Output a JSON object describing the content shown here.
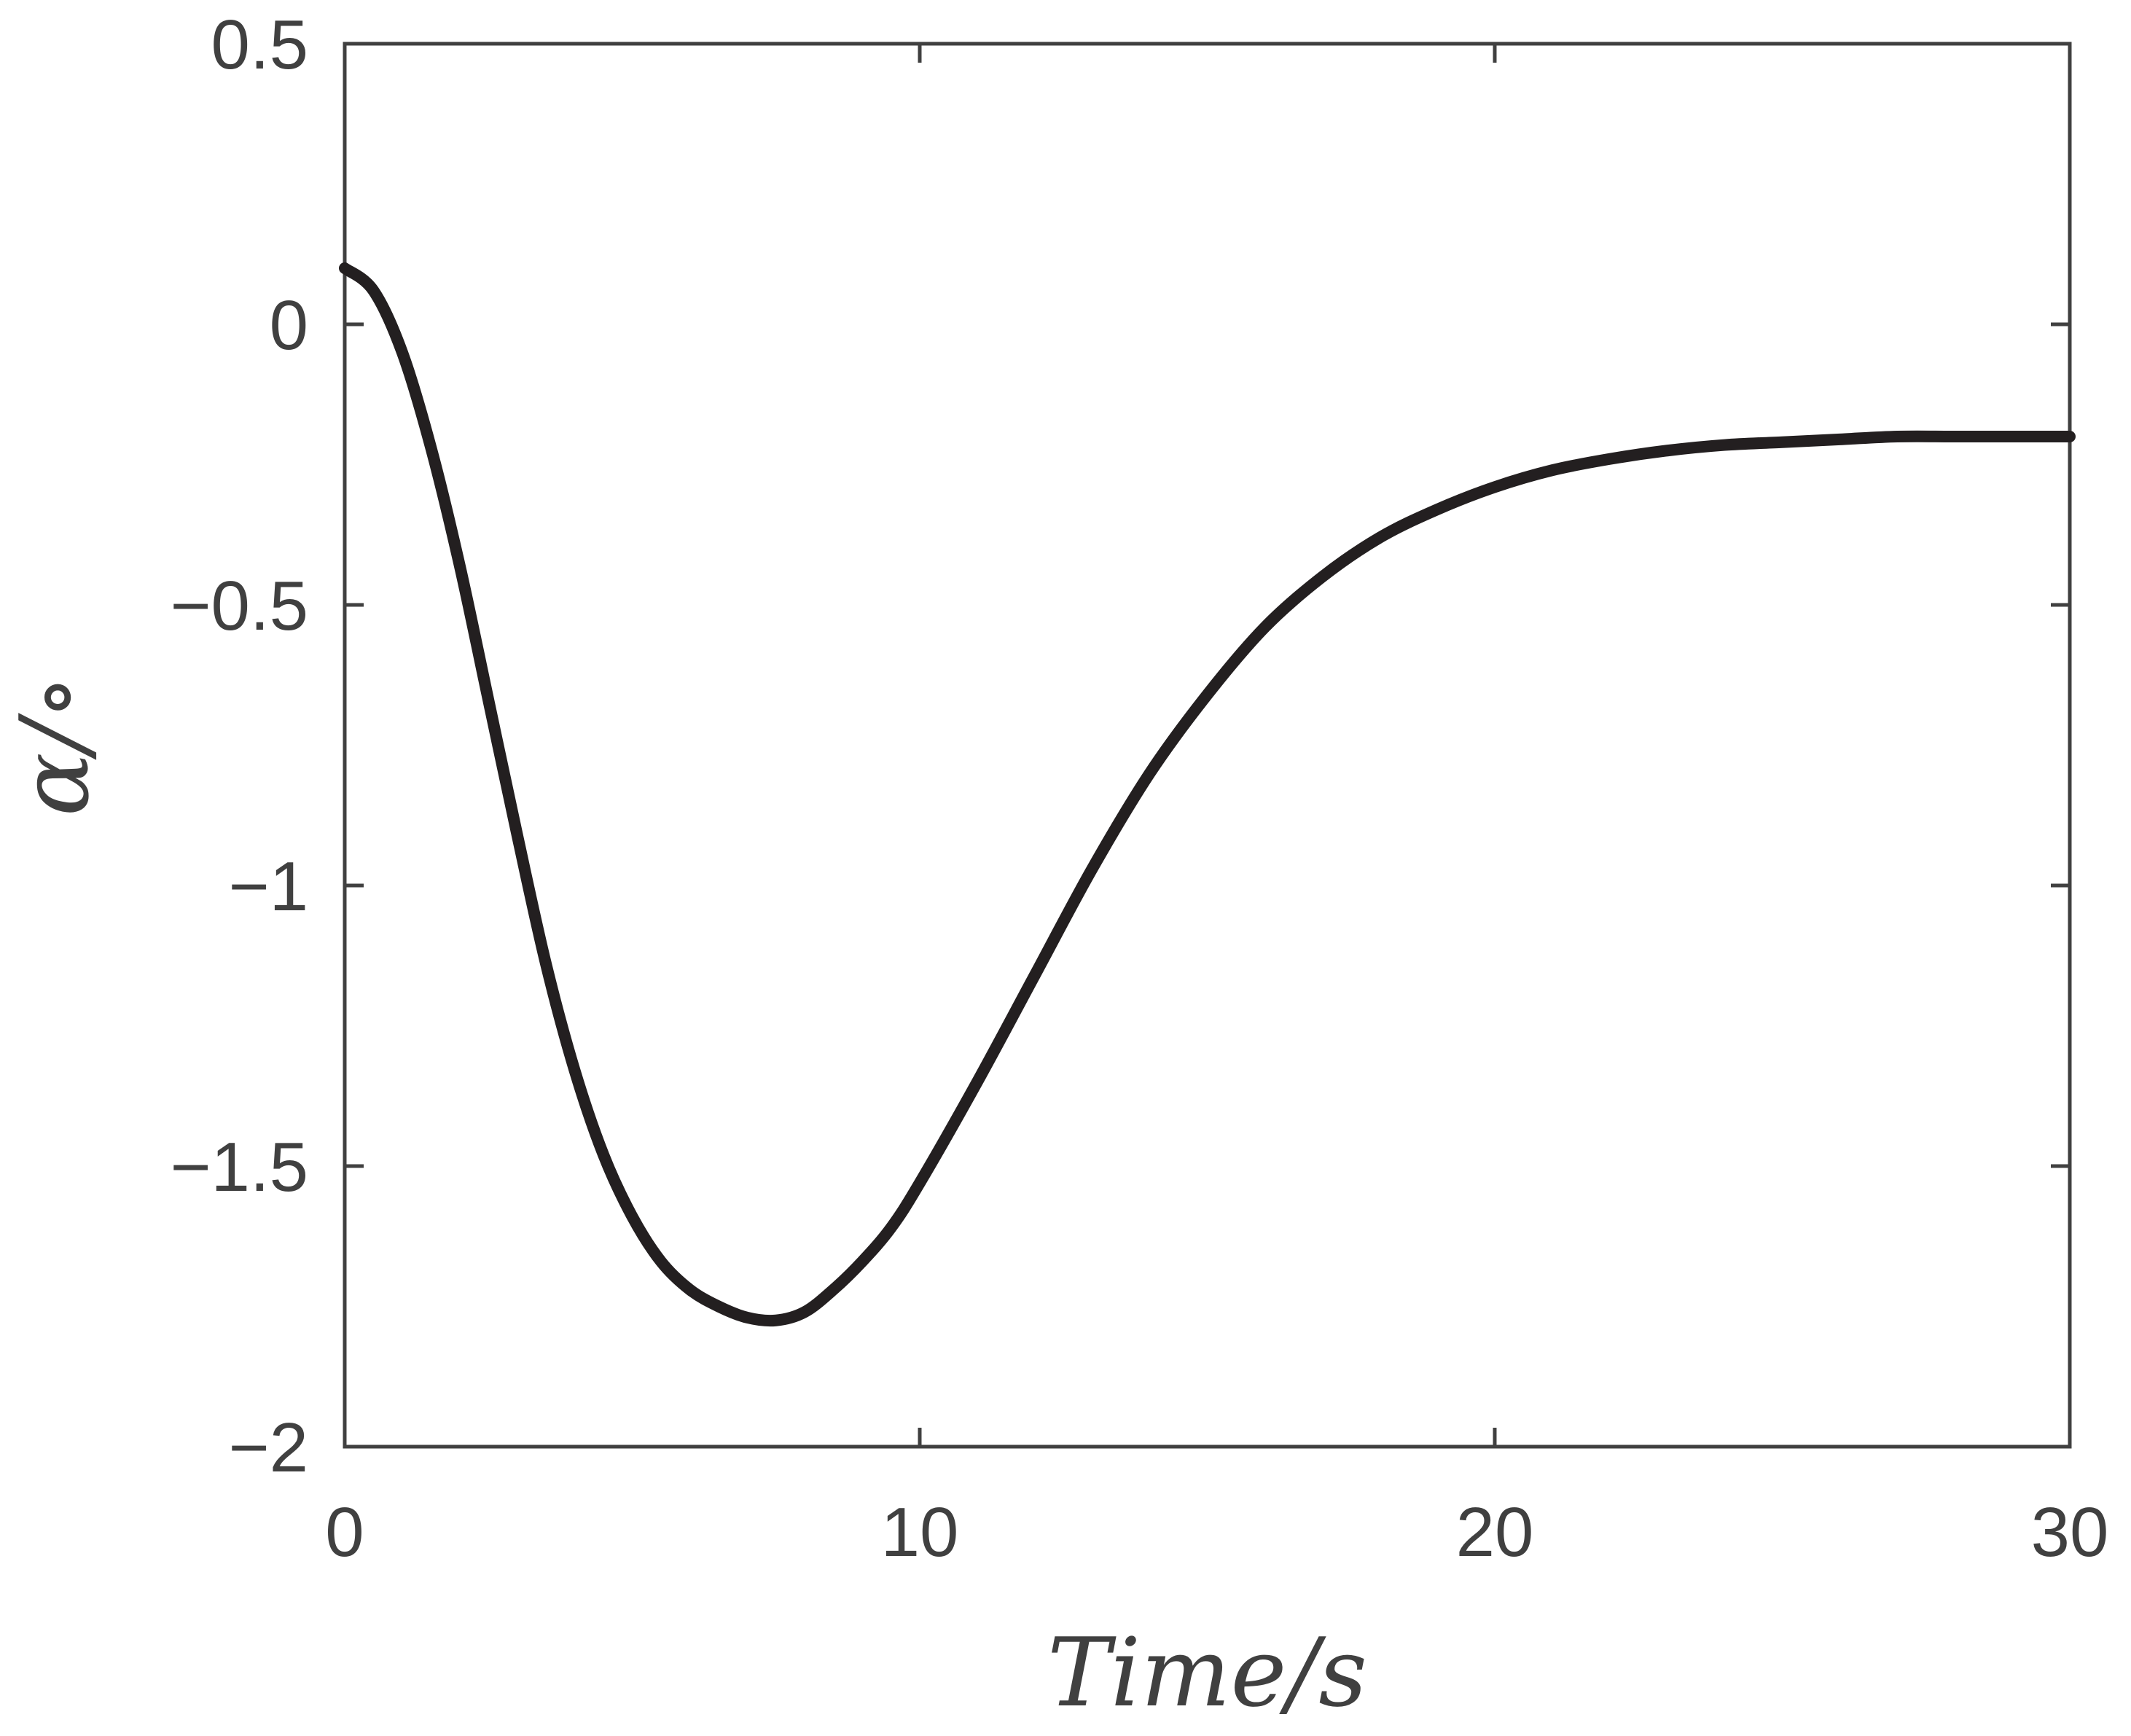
{
  "chart_data": {
    "type": "line",
    "title": "",
    "xlabel": "Time/s",
    "ylabel": "α/∘",
    "xlim": [
      0,
      30
    ],
    "ylim": [
      -2,
      0.5
    ],
    "xticks": [
      0,
      10,
      20,
      30
    ],
    "xtick_labels": [
      "0",
      "10",
      "20",
      "30"
    ],
    "yticks": [
      0.5,
      0,
      -0.5,
      -1,
      -1.5,
      -2
    ],
    "ytick_labels": [
      "0.5",
      "0",
      "−0.5",
      "−1",
      "−1.5",
      "−2"
    ],
    "grid": false,
    "legend": "none",
    "colors": {
      "line": "#231f20",
      "axes": "#404040"
    },
    "series": [
      {
        "x": [
          0,
          0.5,
          1,
          1.5,
          2,
          2.5,
          3,
          3.5,
          4,
          4.5,
          5,
          5.5,
          6,
          6.5,
          7,
          7.5,
          8,
          8.5,
          9,
          9.5,
          10,
          11,
          12,
          13,
          14,
          15,
          16,
          17,
          18,
          19,
          20,
          21,
          22,
          23,
          24,
          25,
          26,
          27,
          28,
          29,
          30
        ],
        "y": [
          0.1,
          0.06,
          -0.05,
          -0.22,
          -0.43,
          -0.67,
          -0.91,
          -1.14,
          -1.33,
          -1.48,
          -1.59,
          -1.67,
          -1.72,
          -1.75,
          -1.77,
          -1.775,
          -1.76,
          -1.72,
          -1.67,
          -1.61,
          -1.53,
          -1.35,
          -1.16,
          -0.97,
          -0.8,
          -0.66,
          -0.54,
          -0.45,
          -0.38,
          -0.33,
          -0.29,
          -0.26,
          -0.24,
          -0.225,
          -0.215,
          -0.21,
          -0.205,
          -0.2,
          -0.2,
          -0.2,
          -0.2
        ]
      }
    ]
  }
}
